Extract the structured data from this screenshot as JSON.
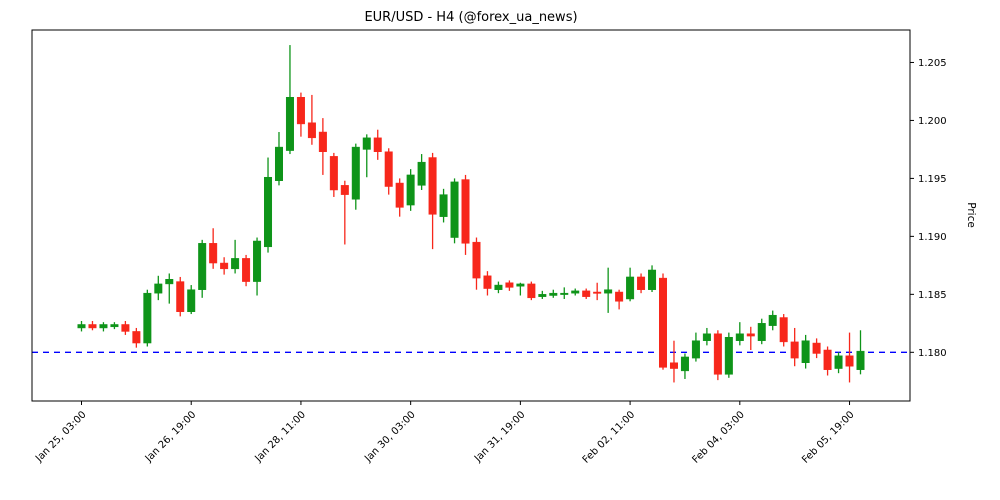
{
  "title": "EUR/USD - H4 (@forex_ua_news)",
  "axes": {
    "price_label": "Price",
    "price_ticks": [
      1.18,
      1.185,
      1.19,
      1.195,
      1.2,
      1.205
    ],
    "price_min": 1.1758,
    "price_max": 1.2078,
    "time_ticks": [
      {
        "index": 0,
        "label": "Jan 25, 03:00"
      },
      {
        "index": 10,
        "label": "Jan 26, 19:00"
      },
      {
        "index": 20,
        "label": "Jan 28, 11:00"
      },
      {
        "index": 30,
        "label": "Jan 30, 03:00"
      },
      {
        "index": 40,
        "label": "Jan 31, 19:00"
      },
      {
        "index": 50,
        "label": "Feb 02, 11:00"
      },
      {
        "index": 60,
        "label": "Feb 04, 03:00"
      },
      {
        "index": 70,
        "label": "Feb 05, 19:00"
      }
    ]
  },
  "reference_line": {
    "price": 1.18,
    "color": "#0000ff",
    "style": "dashed"
  },
  "colors": {
    "up": "#0e9419",
    "down": "#f7271b",
    "axis": "#000000",
    "background": "#ffffff"
  },
  "chart_data": {
    "type": "candlestick",
    "symbol": "EUR/USD",
    "timeframe": "H4",
    "title": "EUR/USD - H4 (@forex_ua_news)",
    "ylabel": "Price",
    "ylim": [
      1.1758,
      1.2078
    ],
    "hline": 1.18,
    "legend": "none",
    "grid": false,
    "candles": [
      {
        "t": "Jan 25, 03:00",
        "o": 1.1821,
        "h": 1.1827,
        "l": 1.1818,
        "c": 1.1824
      },
      {
        "t": "Jan 25, 07:00",
        "o": 1.1824,
        "h": 1.1827,
        "l": 1.1819,
        "c": 1.1821
      },
      {
        "t": "Jan 25, 11:00",
        "o": 1.1821,
        "h": 1.1826,
        "l": 1.1818,
        "c": 1.1824
      },
      {
        "t": "Jan 25, 15:00",
        "o": 1.1822,
        "h": 1.1826,
        "l": 1.182,
        "c": 1.1824
      },
      {
        "t": "Jan 25, 19:00",
        "o": 1.1824,
        "h": 1.1827,
        "l": 1.1815,
        "c": 1.1818
      },
      {
        "t": "Jan 25, 23:00",
        "o": 1.1818,
        "h": 1.1821,
        "l": 1.1804,
        "c": 1.1808
      },
      {
        "t": "Jan 26, 03:00",
        "o": 1.1808,
        "h": 1.1854,
        "l": 1.1805,
        "c": 1.1851
      },
      {
        "t": "Jan 26, 07:00",
        "o": 1.1851,
        "h": 1.1866,
        "l": 1.1845,
        "c": 1.1859
      },
      {
        "t": "Jan 26, 11:00",
        "o": 1.1859,
        "h": 1.1868,
        "l": 1.1842,
        "c": 1.1863
      },
      {
        "t": "Jan 26, 15:00",
        "o": 1.1861,
        "h": 1.1865,
        "l": 1.1831,
        "c": 1.1835
      },
      {
        "t": "Jan 26, 19:00",
        "o": 1.1835,
        "h": 1.1858,
        "l": 1.1833,
        "c": 1.1854
      },
      {
        "t": "Jan 26, 23:00",
        "o": 1.1854,
        "h": 1.1897,
        "l": 1.1847,
        "c": 1.1894
      },
      {
        "t": "Jan 27, 03:00",
        "o": 1.1894,
        "h": 1.1907,
        "l": 1.1872,
        "c": 1.1877
      },
      {
        "t": "Jan 27, 07:00",
        "o": 1.1877,
        "h": 1.1882,
        "l": 1.1867,
        "c": 1.1872
      },
      {
        "t": "Jan 27, 11:00",
        "o": 1.1872,
        "h": 1.1897,
        "l": 1.1868,
        "c": 1.1881
      },
      {
        "t": "Jan 27, 15:00",
        "o": 1.1881,
        "h": 1.1884,
        "l": 1.1857,
        "c": 1.1861
      },
      {
        "t": "Jan 27, 19:00",
        "o": 1.1861,
        "h": 1.1899,
        "l": 1.1849,
        "c": 1.1896
      },
      {
        "t": "Jan 27, 23:00",
        "o": 1.1891,
        "h": 1.1968,
        "l": 1.1886,
        "c": 1.1951
      },
      {
        "t": "Jan 28, 03:00",
        "o": 1.1948,
        "h": 1.199,
        "l": 1.1944,
        "c": 1.1977
      },
      {
        "t": "Jan 28, 07:00",
        "o": 1.1974,
        "h": 1.2065,
        "l": 1.1971,
        "c": 1.202
      },
      {
        "t": "Jan 28, 11:00",
        "o": 1.202,
        "h": 1.2024,
        "l": 1.1986,
        "c": 1.1997
      },
      {
        "t": "Jan 28, 15:00",
        "o": 1.1998,
        "h": 1.2022,
        "l": 1.1979,
        "c": 1.1985
      },
      {
        "t": "Jan 28, 19:00",
        "o": 1.199,
        "h": 1.2002,
        "l": 1.1953,
        "c": 1.1973
      },
      {
        "t": "Jan 28, 23:00",
        "o": 1.1969,
        "h": 1.1972,
        "l": 1.1934,
        "c": 1.194
      },
      {
        "t": "Jan 29, 03:00",
        "o": 1.1944,
        "h": 1.1948,
        "l": 1.1893,
        "c": 1.1936
      },
      {
        "t": "Jan 29, 07:00",
        "o": 1.1932,
        "h": 1.198,
        "l": 1.1923,
        "c": 1.1977
      },
      {
        "t": "Jan 29, 11:00",
        "o": 1.1975,
        "h": 1.1988,
        "l": 1.1951,
        "c": 1.1985
      },
      {
        "t": "Jan 29, 15:00",
        "o": 1.1985,
        "h": 1.1992,
        "l": 1.1966,
        "c": 1.1973
      },
      {
        "t": "Jan 29, 19:00",
        "o": 1.1973,
        "h": 1.1976,
        "l": 1.1936,
        "c": 1.1943
      },
      {
        "t": "Jan 29, 23:00",
        "o": 1.1946,
        "h": 1.195,
        "l": 1.1917,
        "c": 1.1925
      },
      {
        "t": "Jan 30, 03:00",
        "o": 1.1927,
        "h": 1.1958,
        "l": 1.1922,
        "c": 1.1953
      },
      {
        "t": "Jan 30, 07:00",
        "o": 1.1944,
        "h": 1.1971,
        "l": 1.194,
        "c": 1.1964
      },
      {
        "t": "Jan 30, 11:00",
        "o": 1.1968,
        "h": 1.1972,
        "l": 1.1889,
        "c": 1.1919
      },
      {
        "t": "Jan 30, 15:00",
        "o": 1.1917,
        "h": 1.1941,
        "l": 1.1912,
        "c": 1.1936
      },
      {
        "t": "Jan 30, 19:00",
        "o": 1.1899,
        "h": 1.195,
        "l": 1.1894,
        "c": 1.1947
      },
      {
        "t": "Jan 30, 23:00",
        "o": 1.1949,
        "h": 1.1953,
        "l": 1.1884,
        "c": 1.1894
      },
      {
        "t": "Jan 31, 03:00",
        "o": 1.1895,
        "h": 1.1899,
        "l": 1.1854,
        "c": 1.1864
      },
      {
        "t": "Jan 31, 07:00",
        "o": 1.1866,
        "h": 1.187,
        "l": 1.1849,
        "c": 1.1855
      },
      {
        "t": "Jan 31, 11:00",
        "o": 1.1854,
        "h": 1.1861,
        "l": 1.1851,
        "c": 1.1858
      },
      {
        "t": "Jan 31, 15:00",
        "o": 1.186,
        "h": 1.1862,
        "l": 1.1853,
        "c": 1.1856
      },
      {
        "t": "Jan 31, 19:00",
        "o": 1.1857,
        "h": 1.186,
        "l": 1.1849,
        "c": 1.1859
      },
      {
        "t": "Jan 31, 23:00",
        "o": 1.1859,
        "h": 1.1861,
        "l": 1.1845,
        "c": 1.1847
      },
      {
        "t": "Feb 01, 03:00",
        "o": 1.1848,
        "h": 1.1853,
        "l": 1.1846,
        "c": 1.185
      },
      {
        "t": "Feb 01, 07:00",
        "o": 1.1849,
        "h": 1.1854,
        "l": 1.1847,
        "c": 1.1851
      },
      {
        "t": "Feb 01, 11:00",
        "o": 1.185,
        "h": 1.1856,
        "l": 1.1846,
        "c": 1.1851
      },
      {
        "t": "Feb 01, 15:00",
        "o": 1.1851,
        "h": 1.1855,
        "l": 1.1849,
        "c": 1.1853
      },
      {
        "t": "Feb 01, 19:00",
        "o": 1.1853,
        "h": 1.1855,
        "l": 1.1846,
        "c": 1.1848
      },
      {
        "t": "Feb 01, 23:00",
        "o": 1.1852,
        "h": 1.186,
        "l": 1.1845,
        "c": 1.1851
      },
      {
        "t": "Feb 02, 03:00",
        "o": 1.1851,
        "h": 1.1873,
        "l": 1.1834,
        "c": 1.1854
      },
      {
        "t": "Feb 02, 07:00",
        "o": 1.1852,
        "h": 1.1854,
        "l": 1.1837,
        "c": 1.1844
      },
      {
        "t": "Feb 02, 11:00",
        "o": 1.1846,
        "h": 1.1873,
        "l": 1.1844,
        "c": 1.1865
      },
      {
        "t": "Feb 02, 15:00",
        "o": 1.1865,
        "h": 1.1868,
        "l": 1.1851,
        "c": 1.1854
      },
      {
        "t": "Feb 02, 19:00",
        "o": 1.1854,
        "h": 1.1875,
        "l": 1.1852,
        "c": 1.1871
      },
      {
        "t": "Feb 02, 23:00",
        "o": 1.1864,
        "h": 1.1868,
        "l": 1.1785,
        "c": 1.1787
      },
      {
        "t": "Feb 03, 03:00",
        "o": 1.1791,
        "h": 1.181,
        "l": 1.1774,
        "c": 1.1786
      },
      {
        "t": "Feb 03, 07:00",
        "o": 1.1784,
        "h": 1.1799,
        "l": 1.1777,
        "c": 1.1796
      },
      {
        "t": "Feb 03, 11:00",
        "o": 1.1795,
        "h": 1.1817,
        "l": 1.1792,
        "c": 1.181
      },
      {
        "t": "Feb 03, 15:00",
        "o": 1.181,
        "h": 1.1821,
        "l": 1.1806,
        "c": 1.1816
      },
      {
        "t": "Feb 03, 19:00",
        "o": 1.1816,
        "h": 1.1819,
        "l": 1.1776,
        "c": 1.1781
      },
      {
        "t": "Feb 03, 23:00",
        "o": 1.1781,
        "h": 1.1817,
        "l": 1.1778,
        "c": 1.1813
      },
      {
        "t": "Feb 04, 03:00",
        "o": 1.181,
        "h": 1.1826,
        "l": 1.1806,
        "c": 1.1816
      },
      {
        "t": "Feb 04, 07:00",
        "o": 1.1816,
        "h": 1.1822,
        "l": 1.1802,
        "c": 1.1814
      },
      {
        "t": "Feb 04, 11:00",
        "o": 1.181,
        "h": 1.1829,
        "l": 1.1807,
        "c": 1.1825
      },
      {
        "t": "Feb 04, 15:00",
        "o": 1.1823,
        "h": 1.1836,
        "l": 1.1819,
        "c": 1.1832
      },
      {
        "t": "Feb 04, 19:00",
        "o": 1.183,
        "h": 1.1833,
        "l": 1.1805,
        "c": 1.1809
      },
      {
        "t": "Feb 04, 23:00",
        "o": 1.1809,
        "h": 1.1821,
        "l": 1.1788,
        "c": 1.1795
      },
      {
        "t": "Feb 05, 03:00",
        "o": 1.1791,
        "h": 1.1815,
        "l": 1.1786,
        "c": 1.181
      },
      {
        "t": "Feb 05, 07:00",
        "o": 1.1808,
        "h": 1.1812,
        "l": 1.1795,
        "c": 1.1799
      },
      {
        "t": "Feb 05, 11:00",
        "o": 1.1802,
        "h": 1.1805,
        "l": 1.178,
        "c": 1.1785
      },
      {
        "t": "Feb 05, 15:00",
        "o": 1.1786,
        "h": 1.18,
        "l": 1.1782,
        "c": 1.1797
      },
      {
        "t": "Feb 05, 19:00",
        "o": 1.1797,
        "h": 1.1817,
        "l": 1.1774,
        "c": 1.1788
      },
      {
        "t": "Feb 05, 23:00",
        "o": 1.1785,
        "h": 1.1819,
        "l": 1.1781,
        "c": 1.1801
      }
    ]
  }
}
